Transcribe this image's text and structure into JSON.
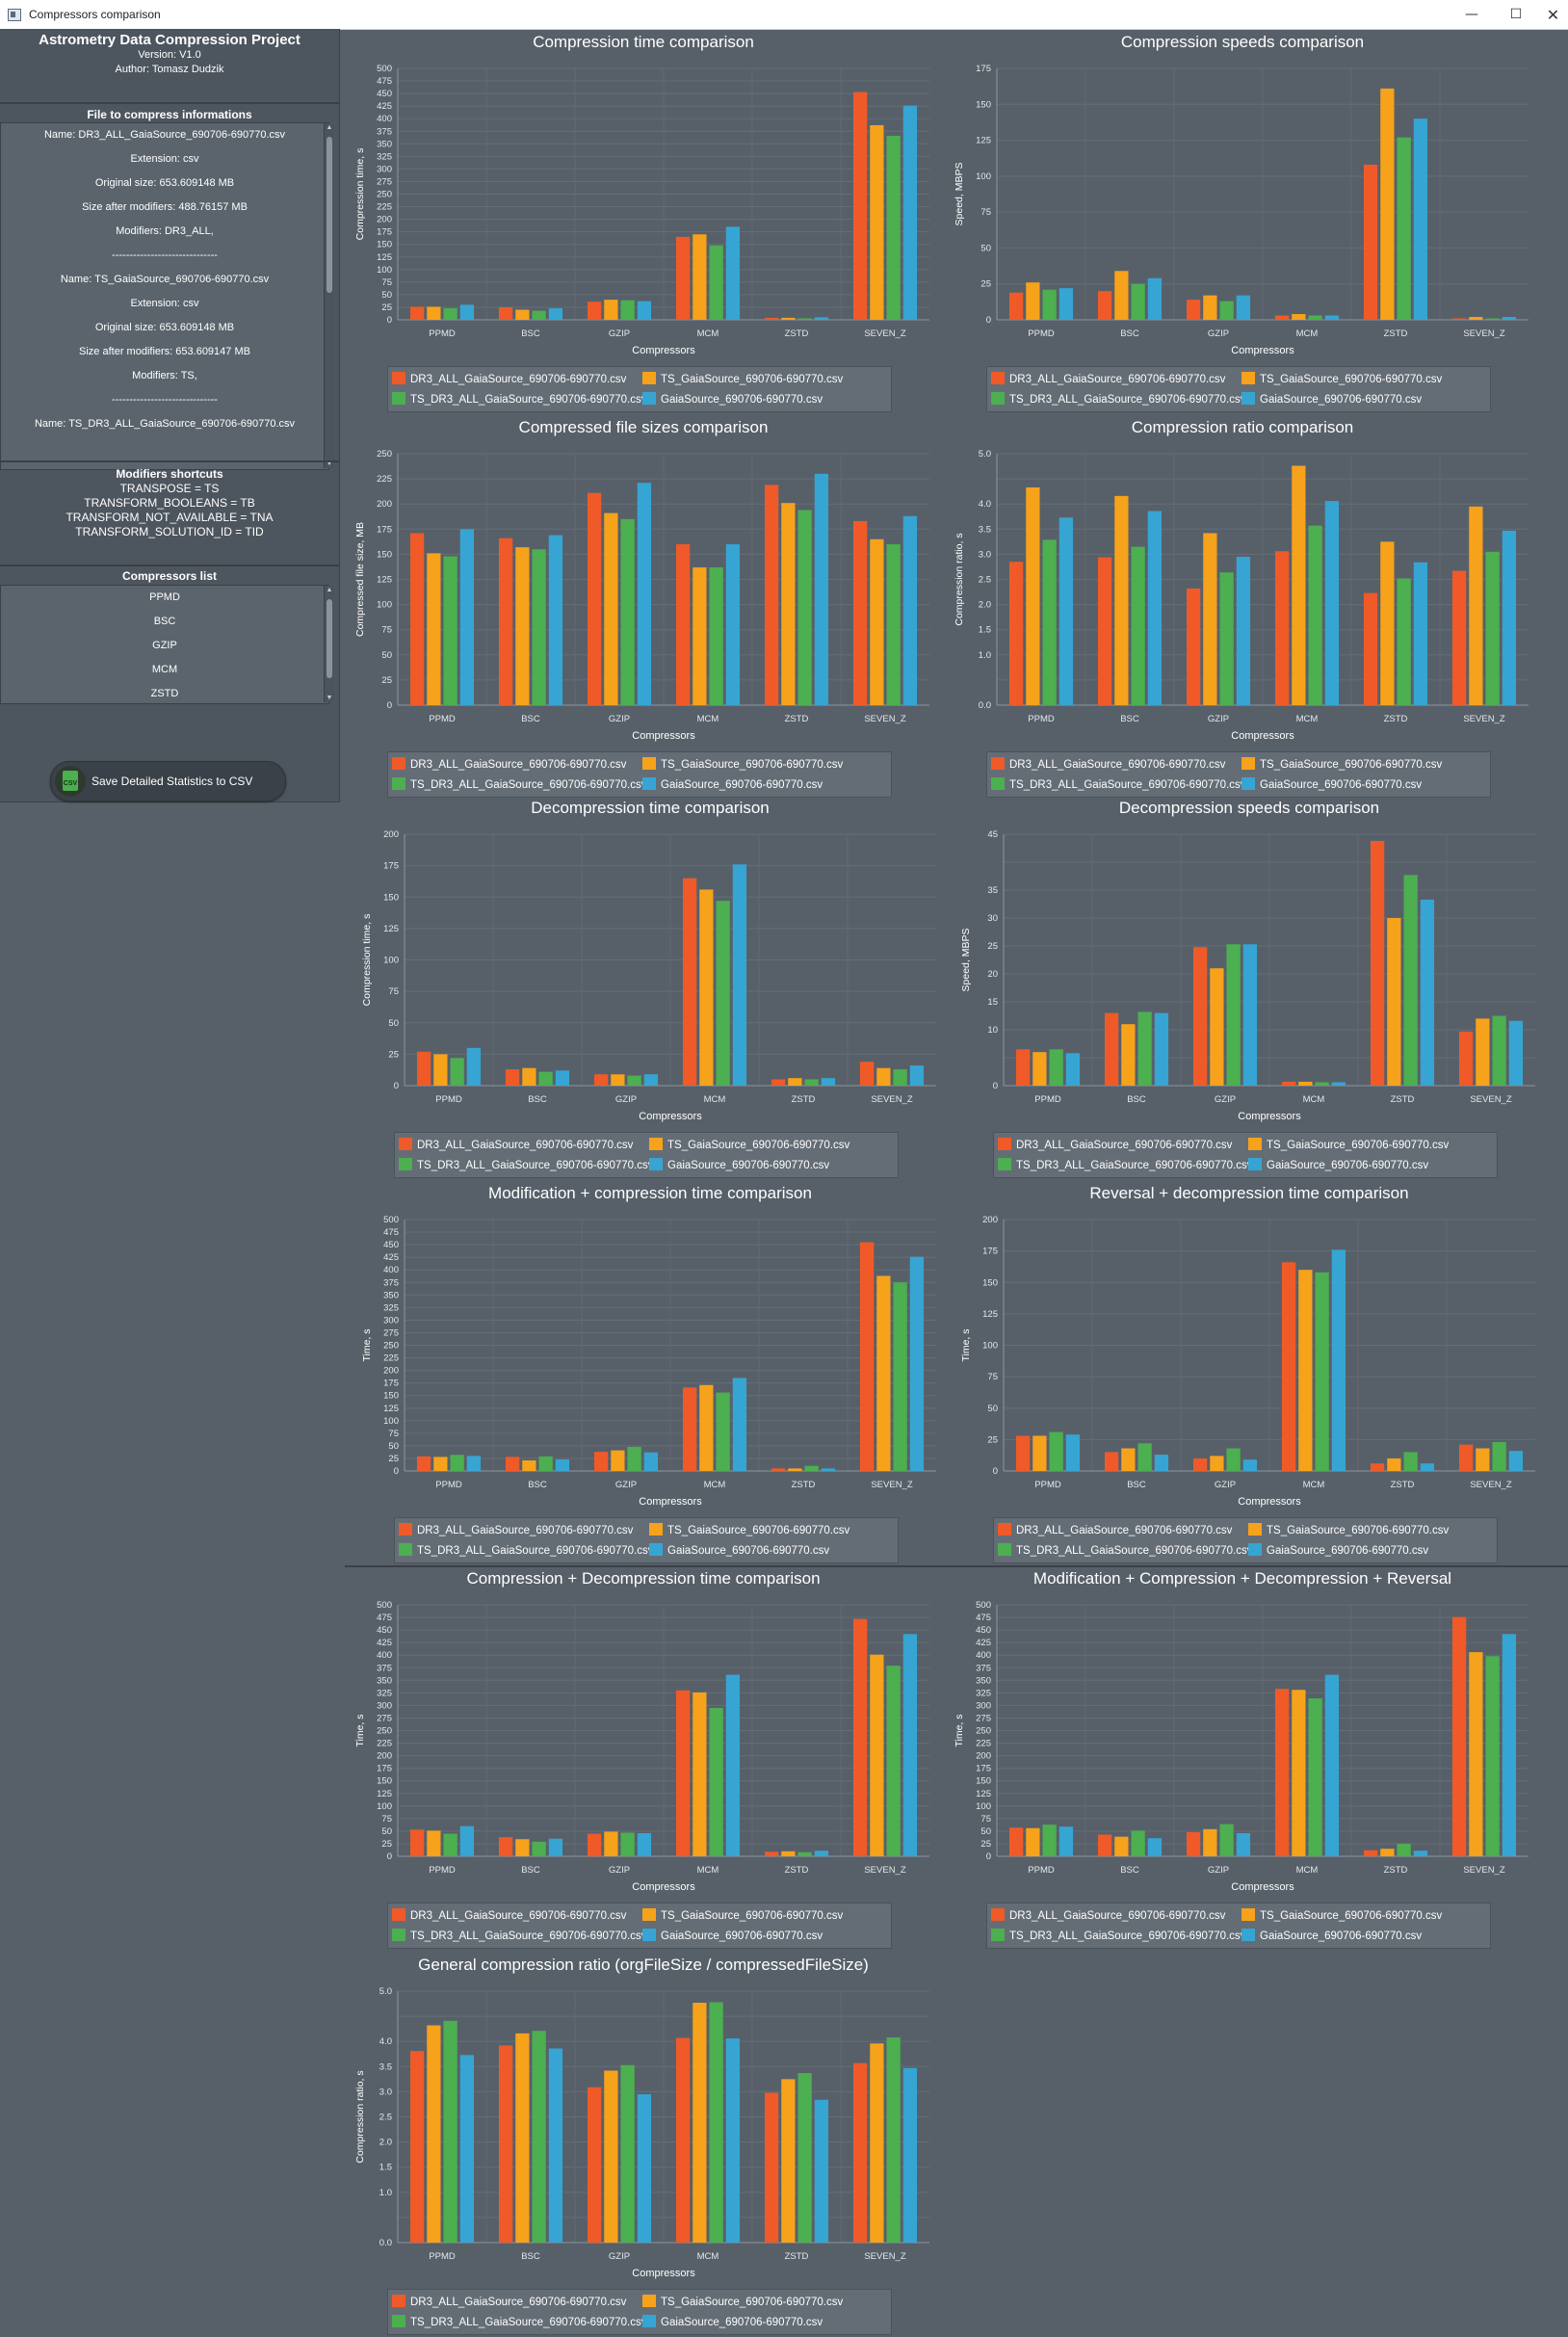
{
  "window": {
    "title": "Compressors comparison",
    "minimize": "—",
    "maximize": "☐",
    "close": "✕",
    "icon": "app-window-icon"
  },
  "sidebar": {
    "app_title": "Astrometry Data Compression Project",
    "version": "Version: V1.0",
    "author": "Author: Tomasz Dudzik",
    "file_info_title": "File to compress informations",
    "file_info_rows": [
      "Name: DR3_ALL_GaiaSource_690706-690770.csv",
      "Extension: csv",
      "Original size: 653.609148 MB",
      "Size after modifiers: 488.76157 MB",
      "Modifiers: DR3_ALL,",
      "------------------------------",
      "Name: TS_GaiaSource_690706-690770.csv",
      "Extension: csv",
      "Original size: 653.609148 MB",
      "Size after modifiers: 653.609147 MB",
      "Modifiers: TS,",
      "------------------------------",
      "Name: TS_DR3_ALL_GaiaSource_690706-690770.csv"
    ],
    "shortcuts_title": "Modifiers shortcuts",
    "shortcuts": [
      "TRANSPOSE = TS",
      "TRANSFORM_BOOLEANS = TB",
      "TRANSFORM_NOT_AVAILABLE = TNA",
      "TRANSFORM_SOLUTION_ID = TID"
    ],
    "compressors_title": "Compressors list",
    "compressors": [
      "PPMD",
      "BSC",
      "GZIP",
      "MCM",
      "ZSTD"
    ],
    "save_button": "Save Detailed Statistics to CSV",
    "save_icon_text": "CSV"
  },
  "series_colors": [
    "#f05a28",
    "#f7a21b",
    "#4caf50",
    "#36a5d4"
  ],
  "legend_entries": [
    "DR3_ALL_GaiaSource_690706-690770.csv",
    "TS_GaiaSource_690706-690770.csv",
    "TS_DR3_ALL_GaiaSource_690706-690770.csv",
    "GaiaSource_690706-690770.csv"
  ],
  "chart_data": [
    {
      "type": "bar",
      "title": "Compression time comparison",
      "xlabel": "Compressors",
      "ylabel": "Compression time, s",
      "ylim": [
        0,
        500
      ],
      "yticks": [
        0,
        25,
        50,
        75,
        100,
        125,
        150,
        175,
        200,
        225,
        250,
        275,
        300,
        325,
        350,
        375,
        400,
        425,
        450,
        475,
        500
      ],
      "categories": [
        "PPMD",
        "BSC",
        "GZIP",
        "MCM",
        "ZSTD",
        "SEVEN_Z"
      ],
      "series": [
        {
          "name": "DR3_ALL_GaiaSource_690706-690770.csv",
          "values": [
            26,
            25,
            36,
            165,
            4,
            453
          ]
        },
        {
          "name": "TS_GaiaSource_690706-690770.csv",
          "values": [
            26,
            20,
            40,
            170,
            4,
            387
          ]
        },
        {
          "name": "TS_DR3_ALL_GaiaSource_690706-690770.csv",
          "values": [
            23,
            18,
            39,
            148,
            3,
            366
          ]
        },
        {
          "name": "GaiaSource_690706-690770.csv",
          "values": [
            30,
            23,
            37,
            185,
            5,
            426
          ]
        }
      ]
    },
    {
      "type": "bar",
      "title": "Compression speeds comparison",
      "xlabel": "Compressors",
      "ylabel": "Speed, MBPS",
      "ylim": [
        0,
        175
      ],
      "yticks": [
        0,
        25,
        50,
        75,
        100,
        125,
        150,
        175
      ],
      "categories": [
        "PPMD",
        "BSC",
        "GZIP",
        "MCM",
        "ZSTD",
        "SEVEN_Z"
      ],
      "series": [
        {
          "name": "DR3_ALL_GaiaSource_690706-690770.csv",
          "values": [
            19,
            20,
            14,
            3,
            108,
            1
          ]
        },
        {
          "name": "TS_GaiaSource_690706-690770.csv",
          "values": [
            26,
            34,
            17,
            4,
            161,
            2
          ]
        },
        {
          "name": "TS_DR3_ALL_GaiaSource_690706-690770.csv",
          "values": [
            21,
            25,
            13,
            3,
            127,
            1
          ]
        },
        {
          "name": "GaiaSource_690706-690770.csv",
          "values": [
            22,
            29,
            17,
            3,
            140,
            2
          ]
        }
      ]
    },
    {
      "type": "bar",
      "title": "Compressed file sizes comparison",
      "xlabel": "Compressors",
      "ylabel": "Compressed file size, MB",
      "ylim": [
        0,
        250
      ],
      "yticks": [
        0,
        25,
        50,
        75,
        100,
        125,
        150,
        175,
        200,
        225,
        250
      ],
      "categories": [
        "PPMD",
        "BSC",
        "GZIP",
        "MCM",
        "ZSTD",
        "SEVEN_Z"
      ],
      "series": [
        {
          "name": "DR3_ALL_GaiaSource_690706-690770.csv",
          "values": [
            171,
            166,
            211,
            160,
            219,
            183
          ]
        },
        {
          "name": "TS_GaiaSource_690706-690770.csv",
          "values": [
            151,
            157,
            191,
            137,
            201,
            165
          ]
        },
        {
          "name": "TS_DR3_ALL_GaiaSource_690706-690770.csv",
          "values": [
            148,
            155,
            185,
            137,
            194,
            160
          ]
        },
        {
          "name": "GaiaSource_690706-690770.csv",
          "values": [
            175,
            169,
            221,
            160,
            230,
            188
          ]
        }
      ]
    },
    {
      "type": "bar",
      "title": "Compression ratio comparison",
      "xlabel": "Compressors",
      "ylabel": "Compression ratio, s",
      "ylim": [
        0,
        5.0
      ],
      "yticks": [
        0,
        0.5,
        1.0,
        1.5,
        2.0,
        2.5,
        3.0,
        3.5,
        4.0,
        4.5,
        5.0
      ],
      "ytick_labels": [
        "0.0",
        "",
        "1.0",
        "1.5",
        "2.0",
        "2.5",
        "3.0",
        "3.5",
        "4.0",
        "",
        "5.0"
      ],
      "categories": [
        "PPMD",
        "BSC",
        "GZIP",
        "MCM",
        "ZSTD",
        "SEVEN_Z"
      ],
      "series": [
        {
          "name": "DR3_ALL_GaiaSource_690706-690770.csv",
          "values": [
            2.85,
            2.94,
            2.32,
            3.06,
            2.23,
            2.67
          ]
        },
        {
          "name": "TS_GaiaSource_690706-690770.csv",
          "values": [
            4.33,
            4.16,
            3.42,
            4.76,
            3.25,
            3.95
          ]
        },
        {
          "name": "TS_DR3_ALL_GaiaSource_690706-690770.csv",
          "values": [
            3.29,
            3.15,
            2.64,
            3.57,
            2.52,
            3.05
          ]
        },
        {
          "name": "GaiaSource_690706-690770.csv",
          "values": [
            3.73,
            3.86,
            2.95,
            4.06,
            2.84,
            3.47
          ]
        }
      ]
    },
    {
      "type": "bar",
      "title": "Decompression time comparison",
      "xlabel": "Compressors",
      "ylabel": "Compression time, s",
      "ylim": [
        0,
        200
      ],
      "yticks": [
        0,
        25,
        50,
        75,
        100,
        125,
        150,
        175,
        200
      ],
      "categories": [
        "PPMD",
        "BSC",
        "GZIP",
        "MCM",
        "ZSTD",
        "SEVEN_Z"
      ],
      "series": [
        {
          "name": "DR3_ALL_GaiaSource_690706-690770.csv",
          "values": [
            27,
            13,
            9,
            165,
            5,
            19
          ]
        },
        {
          "name": "TS_GaiaSource_690706-690770.csv",
          "values": [
            25,
            14,
            9,
            156,
            6,
            14
          ]
        },
        {
          "name": "TS_DR3_ALL_GaiaSource_690706-690770.csv",
          "values": [
            22,
            11,
            8,
            147,
            5,
            13
          ]
        },
        {
          "name": "GaiaSource_690706-690770.csv",
          "values": [
            30,
            12,
            9,
            176,
            6,
            16
          ]
        }
      ]
    },
    {
      "type": "bar",
      "title": "Decompression speeds comparison",
      "xlabel": "Compressors",
      "ylabel": "Speed, MBPS",
      "ylim": [
        0,
        45
      ],
      "yticks": [
        0,
        5,
        10,
        15,
        20,
        25,
        30,
        35,
        40,
        45
      ],
      "ytick_labels": [
        "0",
        "",
        "10",
        "15",
        "20",
        "25",
        "30",
        "35",
        "",
        "45"
      ],
      "categories": [
        "PPMD",
        "BSC",
        "GZIP",
        "MCM",
        "ZSTD",
        "SEVEN_Z"
      ],
      "series": [
        {
          "name": "DR3_ALL_GaiaSource_690706-690770.csv",
          "values": [
            6.5,
            13,
            24.8,
            0.7,
            43.8,
            9.7
          ]
        },
        {
          "name": "TS_GaiaSource_690706-690770.csv",
          "values": [
            6,
            11,
            21,
            0.7,
            30,
            12
          ]
        },
        {
          "name": "TS_DR3_ALL_GaiaSource_690706-690770.csv",
          "values": [
            6.5,
            13.2,
            25.3,
            0.6,
            37.7,
            12.5
          ]
        },
        {
          "name": "GaiaSource_690706-690770.csv",
          "values": [
            5.8,
            13,
            25.3,
            0.6,
            33.3,
            11.6
          ]
        }
      ]
    },
    {
      "type": "bar",
      "title": "Modification + compression time comparison",
      "xlabel": "Compressors",
      "ylabel": "Time, s",
      "ylim": [
        0,
        500
      ],
      "yticks": [
        0,
        25,
        50,
        75,
        100,
        125,
        150,
        175,
        200,
        225,
        250,
        275,
        300,
        325,
        350,
        375,
        400,
        425,
        450,
        475,
        500
      ],
      "categories": [
        "PPMD",
        "BSC",
        "GZIP",
        "MCM",
        "ZSTD",
        "SEVEN_Z"
      ],
      "series": [
        {
          "name": "DR3_ALL_GaiaSource_690706-690770.csv",
          "values": [
            29,
            28,
            38,
            166,
            5,
            455
          ]
        },
        {
          "name": "TS_GaiaSource_690706-690770.csv",
          "values": [
            28,
            21,
            41,
            171,
            5,
            388
          ]
        },
        {
          "name": "TS_DR3_ALL_GaiaSource_690706-690770.csv",
          "values": [
            32,
            29,
            48,
            156,
            10,
            375
          ]
        },
        {
          "name": "GaiaSource_690706-690770.csv",
          "values": [
            30,
            23,
            37,
            185,
            5,
            426
          ]
        }
      ]
    },
    {
      "type": "bar",
      "title": "Reversal + decompression time comparison",
      "xlabel": "Compressors",
      "ylabel": "Time, s",
      "ylim": [
        0,
        200
      ],
      "yticks": [
        0,
        25,
        50,
        75,
        100,
        125,
        150,
        175,
        200
      ],
      "categories": [
        "PPMD",
        "BSC",
        "GZIP",
        "MCM",
        "ZSTD",
        "SEVEN_Z"
      ],
      "series": [
        {
          "name": "DR3_ALL_GaiaSource_690706-690770.csv",
          "values": [
            28,
            15,
            10,
            166,
            6,
            21
          ]
        },
        {
          "name": "TS_GaiaSource_690706-690770.csv",
          "values": [
            28,
            18,
            12,
            160,
            10,
            18
          ]
        },
        {
          "name": "TS_DR3_ALL_GaiaSource_690706-690770.csv",
          "values": [
            31,
            22,
            18,
            158,
            15,
            23
          ]
        },
        {
          "name": "GaiaSource_690706-690770.csv",
          "values": [
            29,
            13,
            9,
            176,
            6,
            16
          ]
        }
      ]
    },
    {
      "type": "bar",
      "title": "Compression + Decompression time comparison",
      "xlabel": "Compressors",
      "ylabel": "Time, s",
      "ylim": [
        0,
        500
      ],
      "yticks": [
        0,
        25,
        50,
        75,
        100,
        125,
        150,
        175,
        200,
        225,
        250,
        275,
        300,
        325,
        350,
        375,
        400,
        425,
        450,
        475,
        500
      ],
      "categories": [
        "PPMD",
        "BSC",
        "GZIP",
        "MCM",
        "ZSTD",
        "SEVEN_Z"
      ],
      "series": [
        {
          "name": "DR3_ALL_GaiaSource_690706-690770.csv",
          "values": [
            53,
            38,
            45,
            330,
            9,
            472
          ]
        },
        {
          "name": "TS_GaiaSource_690706-690770.csv",
          "values": [
            51,
            34,
            49,
            326,
            10,
            401
          ]
        },
        {
          "name": "TS_DR3_ALL_GaiaSource_690706-690770.csv",
          "values": [
            45,
            29,
            47,
            295,
            8,
            379
          ]
        },
        {
          "name": "GaiaSource_690706-690770.csv",
          "values": [
            60,
            35,
            46,
            361,
            11,
            442
          ]
        }
      ]
    },
    {
      "type": "bar",
      "title": "Modification + Compression + Decompression + Reversal",
      "xlabel": "Compressors",
      "ylabel": "Time, s",
      "ylim": [
        0,
        500
      ],
      "yticks": [
        0,
        25,
        50,
        75,
        100,
        125,
        150,
        175,
        200,
        225,
        250,
        275,
        300,
        325,
        350,
        375,
        400,
        425,
        450,
        475,
        500
      ],
      "categories": [
        "PPMD",
        "BSC",
        "GZIP",
        "MCM",
        "ZSTD",
        "SEVEN_Z"
      ],
      "series": [
        {
          "name": "DR3_ALL_GaiaSource_690706-690770.csv",
          "values": [
            57,
            43,
            48,
            333,
            12,
            476
          ]
        },
        {
          "name": "TS_GaiaSource_690706-690770.csv",
          "values": [
            56,
            39,
            54,
            331,
            15,
            406
          ]
        },
        {
          "name": "TS_DR3_ALL_GaiaSource_690706-690770.csv",
          "values": [
            63,
            51,
            64,
            314,
            25,
            398
          ]
        },
        {
          "name": "GaiaSource_690706-690770.csv",
          "values": [
            59,
            36,
            46,
            361,
            11,
            442
          ]
        }
      ]
    },
    {
      "type": "bar",
      "title": "General compression ratio (orgFileSize / compressedFileSize)",
      "xlabel": "Compressors",
      "ylabel": "Compression ratio, s",
      "ylim": [
        0,
        5.0
      ],
      "yticks": [
        0,
        0.5,
        1.0,
        1.5,
        2.0,
        2.5,
        3.0,
        3.5,
        4.0,
        4.5,
        5.0
      ],
      "ytick_labels": [
        "0.0",
        "",
        "1.0",
        "1.5",
        "2.0",
        "2.5",
        "3.0",
        "3.5",
        "4.0",
        "",
        "5.0"
      ],
      "categories": [
        "PPMD",
        "BSC",
        "GZIP",
        "MCM",
        "ZSTD",
        "SEVEN_Z"
      ],
      "series": [
        {
          "name": "DR3_ALL_GaiaSource_690706-690770.csv",
          "values": [
            3.81,
            3.92,
            3.09,
            4.07,
            2.98,
            3.57
          ]
        },
        {
          "name": "TS_GaiaSource_690706-690770.csv",
          "values": [
            4.32,
            4.16,
            3.42,
            4.77,
            3.25,
            3.96
          ]
        },
        {
          "name": "TS_DR3_ALL_GaiaSource_690706-690770.csv",
          "values": [
            4.41,
            4.21,
            3.53,
            4.78,
            3.37,
            4.08
          ]
        },
        {
          "name": "GaiaSource_690706-690770.csv",
          "values": [
            3.73,
            3.86,
            2.95,
            4.06,
            2.84,
            3.47
          ]
        }
      ]
    }
  ]
}
